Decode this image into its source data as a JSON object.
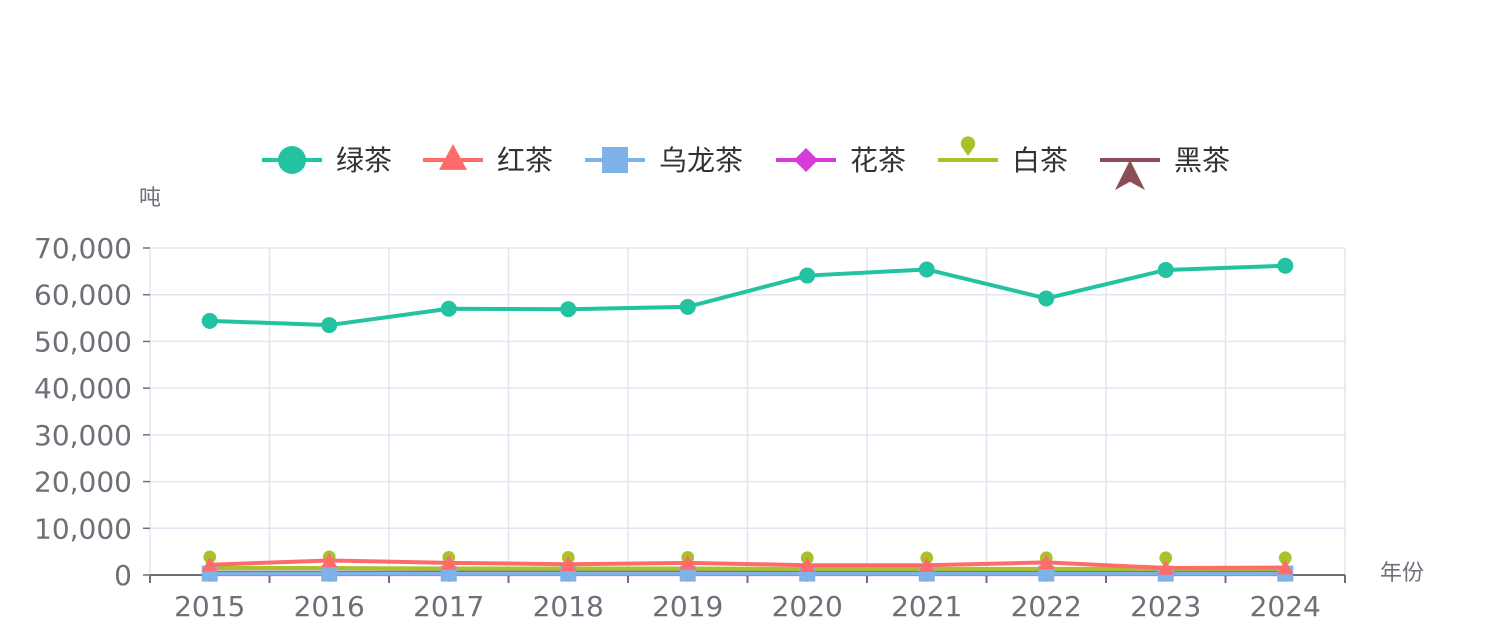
{
  "chart_data": {
    "type": "line",
    "title": "",
    "xlabel": "年份",
    "ylabel": "吨",
    "categories": [
      "2015",
      "2016",
      "2017",
      "2018",
      "2019",
      "2020",
      "2021",
      "2022",
      "2023",
      "2024"
    ],
    "ylim": [
      0,
      70000
    ],
    "yticks": [
      0,
      10000,
      20000,
      30000,
      40000,
      50000,
      60000,
      70000
    ],
    "ytick_labels": [
      "0",
      "10,000",
      "20,000",
      "30,000",
      "40,000",
      "50,000",
      "60,000",
      "70,000"
    ],
    "grid": true,
    "legend_position": "top",
    "series": [
      {
        "name": "绿茶",
        "color": "#23C2A0",
        "symbol": "circle",
        "values": [
          54400,
          53500,
          57000,
          56900,
          57400,
          64100,
          65400,
          59200,
          65300,
          66200
        ]
      },
      {
        "name": "红茶",
        "color": "#FF6B6B",
        "symbol": "triangle",
        "values": [
          2200,
          3100,
          2600,
          2300,
          2600,
          2100,
          2100,
          2700,
          1500,
          1600
        ]
      },
      {
        "name": "乌龙茶",
        "color": "#7FB3E8",
        "symbol": "rect",
        "values": [
          300,
          300,
          300,
          300,
          300,
          300,
          300,
          300,
          300,
          300
        ]
      },
      {
        "name": "花茶",
        "color": "#D63BDA",
        "symbol": "diamond",
        "values": [
          200,
          200,
          200,
          200,
          200,
          200,
          200,
          200,
          200,
          200
        ]
      },
      {
        "name": "白茶",
        "color": "#A7C22B",
        "symbol": "pin",
        "values": [
          1500,
          1500,
          1400,
          1400,
          1400,
          1300,
          1300,
          1300,
          1300,
          1300
        ]
      },
      {
        "name": "黑茶",
        "color": "#8A4F56",
        "symbol": "arrow",
        "values": [
          500,
          500,
          500,
          500,
          500,
          500,
          500,
          500,
          500,
          500
        ]
      }
    ]
  }
}
